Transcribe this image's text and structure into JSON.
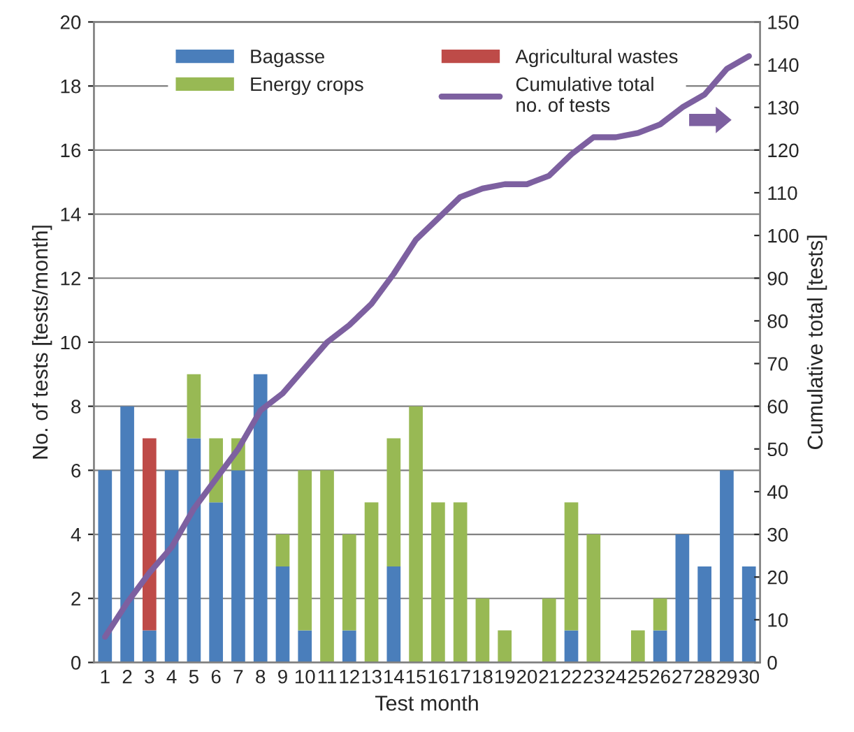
{
  "chart_data": {
    "type": "bar",
    "stacked": true,
    "xlabel": "Test month",
    "ylabel": "No. of tests [tests/month]",
    "y2label": "Cumulative total [tests]",
    "categories": [
      "1",
      "2",
      "3",
      "4",
      "5",
      "6",
      "7",
      "8",
      "9",
      "10",
      "11",
      "12",
      "13",
      "14",
      "15",
      "16",
      "17",
      "18",
      "19",
      "20",
      "21",
      "22",
      "23",
      "24",
      "25",
      "26",
      "27",
      "28",
      "29",
      "30"
    ],
    "series": [
      {
        "name": "Bagasse",
        "color": "#4a7ebb",
        "values": [
          6,
          8,
          1,
          6,
          7,
          5,
          6,
          9,
          3,
          1,
          0,
          1,
          0,
          3,
          0,
          0,
          0,
          0,
          0,
          0,
          0,
          1,
          0,
          0,
          0,
          1,
          4,
          3,
          6,
          3
        ]
      },
      {
        "name": "Agricultural wastes",
        "color": "#be4b48",
        "values": [
          0,
          0,
          6,
          0,
          0,
          0,
          0,
          0,
          0,
          0,
          0,
          0,
          0,
          0,
          0,
          0,
          0,
          0,
          0,
          0,
          0,
          0,
          0,
          0,
          0,
          0,
          0,
          0,
          0,
          0
        ]
      },
      {
        "name": "Energy crops",
        "color": "#98b954",
        "values": [
          0,
          0,
          0,
          0,
          2,
          2,
          1,
          0,
          1,
          5,
          6,
          3,
          5,
          4,
          8,
          5,
          5,
          2,
          1,
          0,
          2,
          4,
          4,
          0,
          1,
          1,
          0,
          0,
          0,
          0
        ]
      },
      {
        "name": "Cumulative total\nno. of tests",
        "type": "line",
        "axis": "y2",
        "color": "#7d60a0",
        "values": [
          6,
          14,
          21,
          27,
          36,
          43,
          50,
          59,
          63,
          69,
          75,
          79,
          84,
          91,
          99,
          104,
          109,
          111,
          112,
          112,
          114,
          119,
          123,
          123,
          124,
          126,
          130,
          133,
          139,
          142
        ]
      }
    ],
    "ylim": [
      0,
      20
    ],
    "yticks": [
      0,
      2,
      4,
      6,
      8,
      10,
      12,
      14,
      16,
      18,
      20
    ],
    "y2lim": [
      0,
      150
    ],
    "y2ticks": [
      0,
      10,
      20,
      30,
      40,
      50,
      60,
      70,
      80,
      90,
      100,
      110,
      120,
      130,
      140,
      150
    ],
    "grid": "y",
    "legend": "top"
  }
}
